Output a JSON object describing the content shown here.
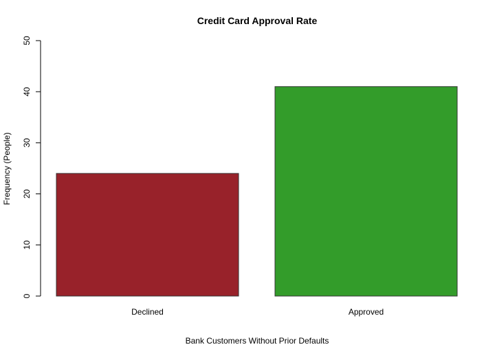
{
  "chart_data": {
    "type": "bar",
    "title": "Credit Card Approval Rate",
    "xlabel": "Bank Customers Without Prior Defaults",
    "ylabel": "Frequency (People)",
    "categories": [
      "Declined",
      "Approved"
    ],
    "values": [
      24,
      41
    ],
    "colors": [
      "#98222A",
      "#339C2A"
    ],
    "ylim": [
      0,
      50
    ],
    "yticks": [
      0,
      10,
      20,
      30,
      40,
      50
    ],
    "grid": false,
    "legend": "none"
  }
}
